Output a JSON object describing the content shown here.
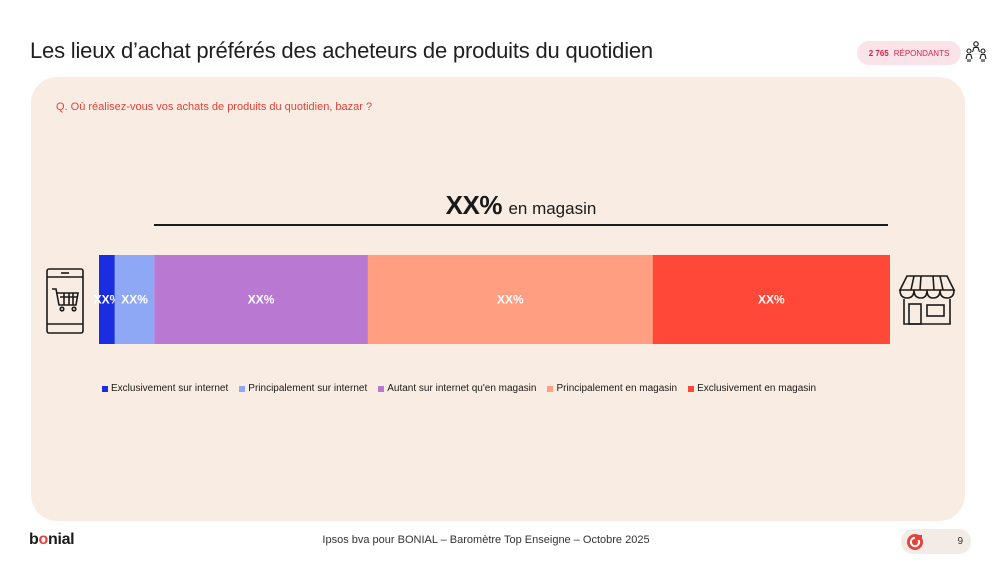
{
  "header": {
    "title": "Les lieux d’achat préférés des acheteurs de produits du quotidien",
    "respondents_count": "2 765",
    "respondents_label": "RÉPONDANTS"
  },
  "question": "Q. Où réalisez-vous vos achats de produits du quotidien, bazar ?",
  "store_total": {
    "value_label": "XX%",
    "label": "en magasin"
  },
  "colors": {
    "exclusivement_internet": "#1b2de0",
    "principalement_internet": "#8fa8f5",
    "autant": "#b979d2",
    "principalement_magasin": "#ff9e80",
    "exclusivement_magasin": "#ff4838",
    "accent": "#e4423a"
  },
  "chart_data": {
    "type": "bar",
    "orientation": "horizontal-stacked",
    "title": "",
    "categories": [
      "Exclusivement sur internet",
      "Principalement sur internet",
      "Autant sur internet qu'en magasin",
      "Principalement en magasin",
      "Exclusivement en magasin"
    ],
    "values": [
      2,
      5,
      27,
      36,
      30
    ],
    "data_labels": [
      "XX%",
      "XX%",
      "XX%",
      "XX%",
      "XX%"
    ],
    "xlim": [
      0,
      100
    ],
    "legend": "bottom",
    "grid": false
  },
  "icons": {
    "left": "smartphone-cart-icon",
    "right": "store-icon",
    "respondents": "people-icon"
  },
  "footer": {
    "logo": "bonial",
    "source": "Ipsos bva pour BONIAL – Baromètre Top Enseigne – Octobre 2025",
    "page_number": "9"
  }
}
